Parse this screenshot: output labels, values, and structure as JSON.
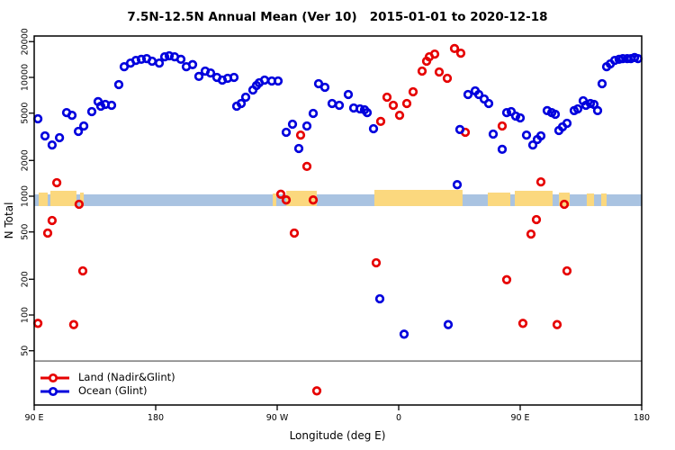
{
  "title": "7.5N-12.5N Annual Mean (Ver 10)   2015-01-01 to 2020-12-18",
  "legend": {
    "land_label": "Land (Nadir&Glint)",
    "ocean_label": "Ocean (Glint)"
  },
  "colors": {
    "land": "#e60000",
    "ocean": "#0000dd",
    "band_ocean": "#a9c3e1",
    "band_land": "#fbd87e",
    "ref_line": "#7a7a7a",
    "axis": "#000000"
  },
  "chart_data": {
    "type": "scatter",
    "title": "7.5N-12.5N Annual Mean (Ver 10)   2015-01-01 to 2020-12-18",
    "xlabel": "Longitude (deg E)",
    "ylabel": "N Total",
    "x_axis": {
      "note": "longitude axis wraps eastward; positions given in continuous deg from 90E (90) to 180 (540)",
      "range": [
        90,
        540
      ],
      "ticks": [
        {
          "pos": 90,
          "label": "90 E"
        },
        {
          "pos": 180,
          "label": "180"
        },
        {
          "pos": 270,
          "label": "90 W"
        },
        {
          "pos": 360,
          "label": "0"
        },
        {
          "pos": 450,
          "label": "90 E"
        },
        {
          "pos": 540,
          "label": "180"
        }
      ]
    },
    "y_axis": {
      "scale": "log10",
      "range": [
        18,
        22000
      ],
      "ticks": [
        50,
        100,
        200,
        500,
        1000,
        2000,
        5000,
        10000,
        20000
      ]
    },
    "grid": false,
    "legend_position": "bottom-left",
    "ref_line_n": 41,
    "band": {
      "note": "land/ocean mask strip near N=1000",
      "n_top": 1036,
      "n_bottom": 826,
      "land_patches": [
        {
          "from": 93.3,
          "to": 100,
          "rise": 2
        },
        {
          "from": 102,
          "to": 121.3,
          "rise": 4
        },
        {
          "from": 124,
          "to": 126.7,
          "rise": 2
        },
        {
          "from": 266.7,
          "to": 269.3,
          "rise": 1
        },
        {
          "from": 276.7,
          "to": 299.3,
          "rise": 4
        },
        {
          "from": 342,
          "to": 407.3,
          "rise": 5
        },
        {
          "from": 426,
          "to": 442.7,
          "rise": 2
        },
        {
          "from": 446,
          "to": 474,
          "rise": 4
        },
        {
          "from": 478.7,
          "to": 486.7,
          "rise": 2
        },
        {
          "from": 499.3,
          "to": 504.7,
          "rise": 1
        },
        {
          "from": 510,
          "to": 514,
          "rise": 1
        }
      ]
    },
    "series": [
      {
        "name": "Land (Nadir&Glint)",
        "color": "#e60000",
        "points": [
          [
            106.7,
            1300
          ],
          [
            123.3,
            855
          ],
          [
            103.3,
            624
          ],
          [
            100,
            489
          ],
          [
            126,
            235
          ],
          [
            92.7,
            85
          ],
          [
            119.3,
            83
          ],
          [
            272.7,
            1040
          ],
          [
            276.7,
            930
          ],
          [
            296.7,
            930
          ],
          [
            287.3,
            3270
          ],
          [
            292,
            1780
          ],
          [
            282.7,
            489
          ],
          [
            299.3,
            23
          ],
          [
            343.3,
            275
          ],
          [
            346.7,
            4260
          ],
          [
            351.3,
            6810
          ],
          [
            356,
            5820
          ],
          [
            360.7,
            4800
          ],
          [
            366,
            6030
          ],
          [
            370.7,
            7570
          ],
          [
            377.3,
            11300
          ],
          [
            380.7,
            13700
          ],
          [
            382.7,
            14900
          ],
          [
            386.7,
            15700
          ],
          [
            390,
            11100
          ],
          [
            396,
            9830
          ],
          [
            401.3,
            17500
          ],
          [
            406,
            16000
          ],
          [
            409.3,
            3450
          ],
          [
            436.7,
            3900
          ],
          [
            465.3,
            1320
          ],
          [
            482.7,
            855
          ],
          [
            462,
            635
          ],
          [
            458,
            480
          ],
          [
            484.7,
            235
          ],
          [
            440,
            198
          ],
          [
            452,
            85
          ],
          [
            477.3,
            83
          ]
        ]
      },
      {
        "name": "Ocean (Glint)",
        "color": "#0000dd",
        "points": [
          [
            92.7,
            4480
          ],
          [
            98,
            3220
          ],
          [
            103.3,
            2700
          ],
          [
            108.7,
            3110
          ],
          [
            114,
            5060
          ],
          [
            118,
            4800
          ],
          [
            122.7,
            3510
          ],
          [
            126.7,
            3900
          ],
          [
            132.7,
            5150
          ],
          [
            137.3,
            6250
          ],
          [
            139.3,
            5720
          ],
          [
            142.7,
            5930
          ],
          [
            147.3,
            5820
          ],
          [
            152.7,
            8700
          ],
          [
            156.7,
            12300
          ],
          [
            161.3,
            13200
          ],
          [
            165.3,
            13900
          ],
          [
            169.3,
            14200
          ],
          [
            173.3,
            14400
          ],
          [
            177.3,
            13700
          ],
          [
            182.7,
            13200
          ],
          [
            186.7,
            14900
          ],
          [
            190,
            15200
          ],
          [
            194,
            14900
          ],
          [
            198.7,
            14200
          ],
          [
            202.7,
            12300
          ],
          [
            207.3,
            12800
          ],
          [
            212,
            10200
          ],
          [
            216.7,
            11300
          ],
          [
            220.7,
            10900
          ],
          [
            225.3,
            10000
          ],
          [
            229.3,
            9490
          ],
          [
            233.3,
            9830
          ],
          [
            238,
            10000
          ],
          [
            240,
            5720
          ],
          [
            243.3,
            6030
          ],
          [
            246.7,
            6810
          ],
          [
            252,
            7830
          ],
          [
            254.7,
            8550
          ],
          [
            256.7,
            9000
          ],
          [
            260.7,
            9490
          ],
          [
            266,
            9330
          ],
          [
            270.7,
            9330
          ],
          [
            276.7,
            3450
          ],
          [
            281.3,
            4040
          ],
          [
            286,
            2520
          ],
          [
            292,
            3900
          ],
          [
            296.7,
            4980
          ],
          [
            300.7,
            8850
          ],
          [
            305.3,
            8250
          ],
          [
            310.7,
            6030
          ],
          [
            316,
            5820
          ],
          [
            322.7,
            7180
          ],
          [
            326.7,
            5530
          ],
          [
            331.3,
            5430
          ],
          [
            334.7,
            5340
          ],
          [
            336.7,
            5060
          ],
          [
            341.3,
            3700
          ],
          [
            403.3,
            1250
          ],
          [
            405.3,
            3640
          ],
          [
            411.3,
            7180
          ],
          [
            416.7,
            7700
          ],
          [
            419.3,
            7180
          ],
          [
            423.3,
            6580
          ],
          [
            426.7,
            6030
          ],
          [
            430,
            3330
          ],
          [
            346,
            137
          ],
          [
            364,
            69
          ],
          [
            396.7,
            83
          ],
          [
            436.7,
            2480
          ],
          [
            440,
            5060
          ],
          [
            443.3,
            5150
          ],
          [
            446.7,
            4720
          ],
          [
            450,
            4560
          ],
          [
            454.7,
            3270
          ],
          [
            459.3,
            2700
          ],
          [
            462.7,
            3000
          ],
          [
            465.3,
            3220
          ],
          [
            470,
            5250
          ],
          [
            473.3,
            5060
          ],
          [
            476,
            4890
          ],
          [
            478.7,
            3570
          ],
          [
            481.3,
            3830
          ],
          [
            484.7,
            4110
          ],
          [
            490,
            5250
          ],
          [
            492.7,
            5430
          ],
          [
            496.7,
            6350
          ],
          [
            498.7,
            5820
          ],
          [
            502,
            6030
          ],
          [
            504.7,
            5930
          ],
          [
            507.3,
            5250
          ],
          [
            510.7,
            8850
          ],
          [
            514,
            12300
          ],
          [
            516.7,
            13000
          ],
          [
            520,
            13900
          ],
          [
            523.3,
            14200
          ],
          [
            526,
            14400
          ],
          [
            529.3,
            14400
          ],
          [
            532,
            14400
          ],
          [
            534.7,
            14700
          ],
          [
            537.3,
            14400
          ]
        ]
      }
    ]
  }
}
